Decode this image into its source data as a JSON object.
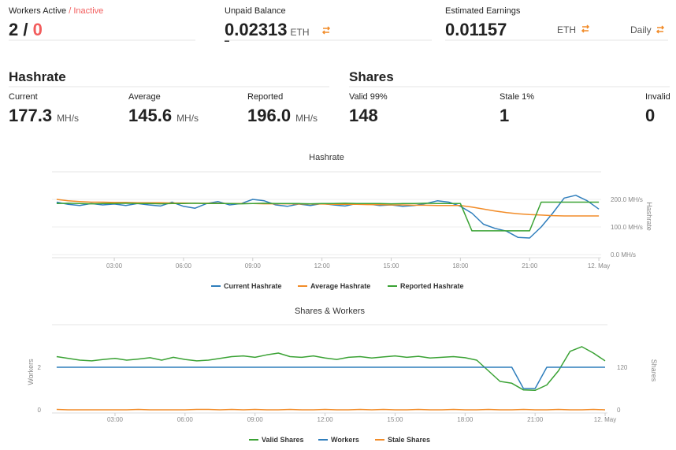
{
  "workers": {
    "label": "Workers Active",
    "separator": "/",
    "inactive_label": "Inactive",
    "active": 2,
    "inactive": 0
  },
  "unpaid_balance": {
    "label": "Unpaid Balance",
    "value": "0.02313",
    "unit": "ETH"
  },
  "estimated_earnings": {
    "label": "Estimated Earnings",
    "value": "0.01157",
    "unit": "ETH",
    "period": "Daily"
  },
  "hashrate": {
    "title": "Hashrate",
    "items": [
      {
        "label": "Current",
        "value": "177.3",
        "unit": "MH/s"
      },
      {
        "label": "Average",
        "value": "145.6",
        "unit": "MH/s"
      },
      {
        "label": "Reported",
        "value": "196.0",
        "unit": "MH/s"
      }
    ]
  },
  "shares": {
    "title": "Shares",
    "items": [
      {
        "label": "Valid 99%",
        "value": 148
      },
      {
        "label": "Stale 1%",
        "value": 1
      },
      {
        "label": "Invalid",
        "value": 0
      }
    ]
  },
  "chart_data": [
    {
      "type": "line",
      "title": "Hashrate",
      "x": [
        0.5,
        1,
        1.5,
        2,
        2.5,
        3,
        3.5,
        4,
        4.5,
        5,
        5.5,
        6,
        6.5,
        7,
        7.5,
        8,
        8.5,
        9,
        9.5,
        10,
        10.5,
        11,
        11.5,
        12,
        12.5,
        13,
        13.5,
        14,
        14.5,
        15,
        15.5,
        16,
        16.5,
        17,
        17.5,
        18,
        18.5,
        19,
        19.5,
        20,
        20.5,
        21,
        21.5,
        22,
        22.5,
        23,
        23.5,
        24
      ],
      "xlim": [
        0.3,
        24.1
      ],
      "xticks": [
        {
          "value": 3,
          "label": "03:00"
        },
        {
          "value": 6,
          "label": "06:00"
        },
        {
          "value": 9,
          "label": "09:00"
        },
        {
          "value": 12,
          "label": "12:00"
        },
        {
          "value": 15,
          "label": "15:00"
        },
        {
          "value": 18,
          "label": "18:00"
        },
        {
          "value": 21,
          "label": "21:00"
        },
        {
          "value": 24,
          "label": "12. May"
        }
      ],
      "y2label": "Hashrate",
      "y2lim": [
        0,
        300
      ],
      "y2ticks": [
        {
          "value": 0,
          "label": "0.0 MH/s"
        },
        {
          "value": 100,
          "label": "100.0 MH/s"
        },
        {
          "value": 200,
          "label": "200.0 MH/s"
        }
      ],
      "grid": true,
      "legend": "bottom",
      "series": [
        {
          "name": "Current Hashrate",
          "color": "#2f7ebc",
          "axis": "y2",
          "values": [
            190,
            182,
            178,
            185,
            180,
            183,
            178,
            185,
            180,
            176,
            190,
            175,
            168,
            185,
            192,
            180,
            185,
            200,
            195,
            180,
            175,
            183,
            178,
            185,
            180,
            176,
            185,
            183,
            178,
            180,
            175,
            178,
            185,
            195,
            190,
            175,
            150,
            110,
            95,
            85,
            62,
            60,
            100,
            150,
            205,
            215,
            195,
            165
          ]
        },
        {
          "name": "Average Hashrate",
          "color": "#f28c28",
          "axis": "y2",
          "values": [
            200,
            195,
            192,
            190,
            190,
            189,
            189,
            188,
            188,
            188,
            187,
            187,
            186,
            186,
            186,
            185,
            185,
            185,
            184,
            184,
            184,
            183,
            183,
            183,
            182,
            182,
            182,
            181,
            181,
            180,
            180,
            179,
            179,
            178,
            178,
            178,
            172,
            165,
            158,
            152,
            148,
            145,
            143,
            141,
            140,
            140,
            140,
            140
          ]
        },
        {
          "name": "Reported Hashrate",
          "color": "#3aa234",
          "axis": "y2",
          "values": [
            185,
            186,
            185,
            184,
            185,
            185,
            186,
            185,
            185,
            184,
            185,
            185,
            186,
            185,
            185,
            185,
            184,
            185,
            186,
            185,
            185,
            185,
            184,
            185,
            185,
            186,
            185,
            185,
            185,
            184,
            185,
            185,
            186,
            185,
            185,
            185,
            86,
            86,
            86,
            86,
            86,
            86,
            190,
            190,
            190,
            190,
            190,
            190
          ]
        }
      ]
    },
    {
      "type": "line",
      "title": "Shares & Workers",
      "x": [
        0.5,
        1,
        1.5,
        2,
        2.5,
        3,
        3.5,
        4,
        4.5,
        5,
        5.5,
        6,
        6.5,
        7,
        7.5,
        8,
        8.5,
        9,
        9.5,
        10,
        10.5,
        11,
        11.5,
        12,
        12.5,
        13,
        13.5,
        14,
        14.5,
        15,
        15.5,
        16,
        16.5,
        17,
        17.5,
        18,
        18.5,
        19,
        19.5,
        20,
        20.5,
        21,
        21.5,
        22,
        22.5,
        23,
        23.5,
        24
      ],
      "xlim": [
        0.3,
        24.1
      ],
      "xticks": [
        {
          "value": 3,
          "label": "03:00"
        },
        {
          "value": 6,
          "label": "06:00"
        },
        {
          "value": 9,
          "label": "09:00"
        },
        {
          "value": 12,
          "label": "12:00"
        },
        {
          "value": 15,
          "label": "15:00"
        },
        {
          "value": 18,
          "label": "18:00"
        },
        {
          "value": 21,
          "label": "21:00"
        },
        {
          "value": 24,
          "label": "12. May"
        }
      ],
      "ylabel": "Workers",
      "ylim": [
        0,
        4
      ],
      "yticks": [
        0,
        2
      ],
      "y2label": "Shares",
      "y2lim": [
        0,
        240
      ],
      "y2ticks": [
        0,
        120
      ],
      "grid": false,
      "legend": "bottom",
      "series": [
        {
          "name": "Valid Shares",
          "color": "#3aa234",
          "axis": "y2",
          "values": [
            150,
            145,
            140,
            138,
            142,
            145,
            140,
            143,
            147,
            140,
            148,
            142,
            138,
            140,
            145,
            150,
            152,
            148,
            155,
            160,
            150,
            148,
            152,
            146,
            142,
            148,
            150,
            146,
            149,
            152,
            148,
            151,
            146,
            148,
            150,
            147,
            140,
            110,
            80,
            75,
            56,
            55,
            70,
            110,
            165,
            178,
            160,
            138
          ]
        },
        {
          "name": "Workers",
          "color": "#2f7ebc",
          "axis": "y",
          "values": [
            2,
            2,
            2,
            2,
            2,
            2,
            2,
            2,
            2,
            2,
            2,
            2,
            2,
            2,
            2,
            2,
            2,
            2,
            2,
            2,
            2,
            2,
            2,
            2,
            2,
            2,
            2,
            2,
            2,
            2,
            2,
            2,
            2,
            2,
            2,
            2,
            2,
            2,
            2,
            2,
            1,
            1,
            2,
            2,
            2,
            2,
            2,
            2
          ]
        },
        {
          "name": "Stale Shares",
          "color": "#f28c28",
          "axis": "y2",
          "values": [
            1,
            0,
            0,
            0,
            0,
            0,
            0,
            1,
            0,
            0,
            0,
            0,
            1,
            1,
            0,
            1,
            0,
            1,
            0,
            0,
            1,
            0,
            0,
            1,
            0,
            0,
            1,
            0,
            1,
            0,
            0,
            1,
            0,
            0,
            1,
            0,
            0,
            1,
            0,
            0,
            1,
            0,
            0,
            1,
            0,
            0,
            1,
            0
          ]
        }
      ]
    }
  ]
}
